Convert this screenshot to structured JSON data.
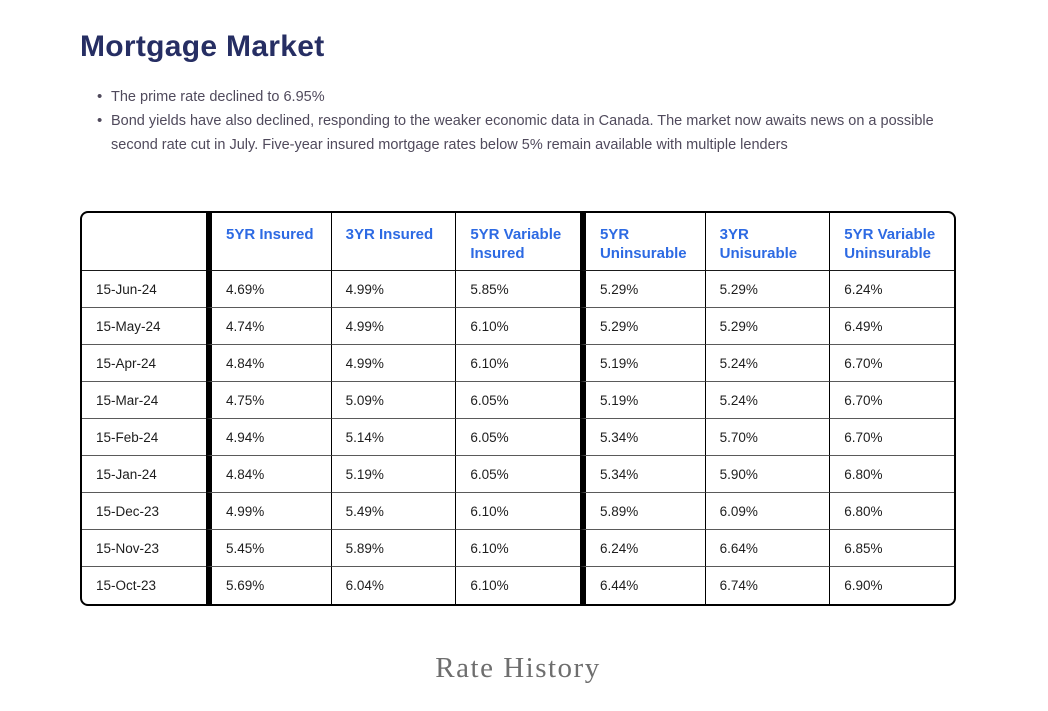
{
  "page": {
    "title": "Mortgage Market",
    "bullets": [
      "The prime rate declined to 6.95%",
      "Bond yields have also declined, responding to the weaker economic data in Canada. The market now awaits news on a possible second rate cut in July. Five-year insured mortgage rates below 5% remain available with multiple lenders"
    ],
    "footer_caption": "Rate History"
  },
  "colors": {
    "title_text": "#262e63",
    "body_text": "#504a5c",
    "header_text": "#2d6ae3",
    "cell_text": "#1d1d1d",
    "caption_text": "#6e6e6e",
    "table_border": "#000000"
  },
  "table": {
    "columns": [
      "",
      "5YR Insured",
      "3YR Insured",
      "5YR Variable Insured",
      "5YR Uninsurable",
      "3YR Unisurable",
      "5YR Variable Uninsurable"
    ],
    "thick_divider_before_columns": [
      1,
      4
    ],
    "rows": [
      [
        "15-Jun-24",
        "4.69%",
        "4.99%",
        "5.85%",
        "5.29%",
        "5.29%",
        "6.24%"
      ],
      [
        "15-May-24",
        "4.74%",
        "4.99%",
        "6.10%",
        "5.29%",
        "5.29%",
        "6.49%"
      ],
      [
        "15-Apr-24",
        "4.84%",
        "4.99%",
        "6.10%",
        "5.19%",
        "5.24%",
        "6.70%"
      ],
      [
        "15-Mar-24",
        "4.75%",
        "5.09%",
        "6.05%",
        "5.19%",
        "5.24%",
        "6.70%"
      ],
      [
        "15-Feb-24",
        "4.94%",
        "5.14%",
        "6.05%",
        "5.34%",
        "5.70%",
        "6.70%"
      ],
      [
        "15-Jan-24",
        "4.84%",
        "5.19%",
        "6.05%",
        "5.34%",
        "5.90%",
        "6.80%"
      ],
      [
        "15-Dec-23",
        "4.99%",
        "5.49%",
        "6.10%",
        "5.89%",
        "6.09%",
        "6.80%"
      ],
      [
        "15-Nov-23",
        "5.45%",
        "5.89%",
        "6.10%",
        "6.24%",
        "6.64%",
        "6.85%"
      ],
      [
        "15-Oct-23",
        "5.69%",
        "6.04%",
        "6.10%",
        "6.44%",
        "6.74%",
        "6.90%"
      ]
    ]
  }
}
